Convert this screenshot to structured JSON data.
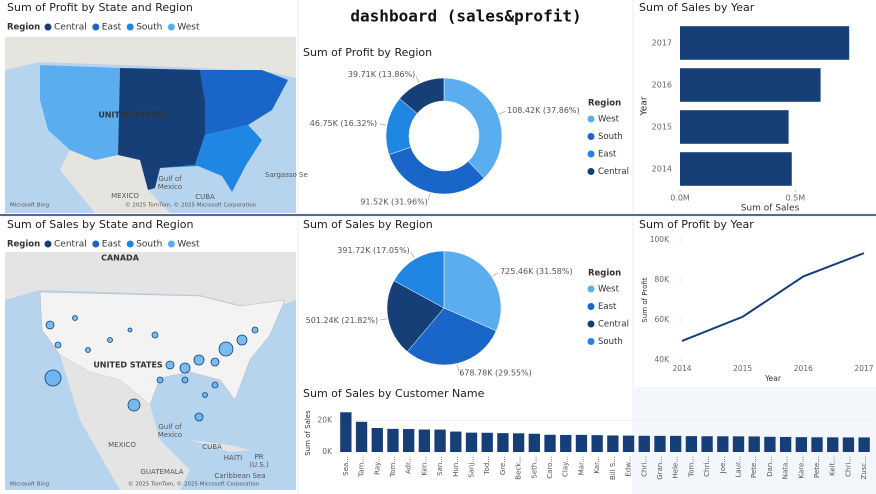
{
  "dashboard_title": "dashboard (sales&profit)",
  "maps": [
    {
      "title": "Sum of Profit by State and Region",
      "legend_title": "Region",
      "legend": [
        {
          "name": "Central",
          "color": "#163f78"
        },
        {
          "name": "East",
          "color": "#1a66c8"
        },
        {
          "name": "South",
          "color": "#1f86e3"
        },
        {
          "name": "West",
          "color": "#5aaef0"
        }
      ],
      "labels": [
        "UNITED STATES",
        "MEXICO",
        "Gulf of",
        "Mexico",
        "CUBA",
        "Sargasso Se",
        "© 2025 TomTom, © 2025 Microsoft Corporation",
        "Microsoft Bing"
      ]
    },
    {
      "title": "Sum of Sales by State and Region",
      "legend_title": "Region",
      "legend": [
        {
          "name": "Central",
          "color": "#163f78"
        },
        {
          "name": "East",
          "color": "#1a66c8"
        },
        {
          "name": "South",
          "color": "#1f86e3"
        },
        {
          "name": "West",
          "color": "#5aaef0"
        }
      ],
      "labels": [
        "CANADA",
        "UNITED STATES",
        "MEXICO",
        "Gulf of",
        "Mexico",
        "CUBA",
        "HAITI",
        "PR",
        "(U.S.)",
        "Caribbean Sea",
        "GUATEMALA",
        "© 2025 TomTom, © 2025 Microsoft Corporation",
        "Microsoft Bing"
      ]
    }
  ],
  "chart_data": [
    {
      "type": "donut",
      "title": "Sum of Profit by Region",
      "legend_title": "Region",
      "categories": [
        "West",
        "South",
        "East",
        "Central"
      ],
      "values": [
        108420,
        91520,
        46750,
        39710
      ],
      "value_labels": [
        "108.42K (37.86%)",
        "91.52K (31.96%)",
        "46.75K (16.32%)",
        "39.71K (13.86%)"
      ],
      "colors": [
        "#5aaef0",
        "#1a66c8",
        "#1f86e3",
        "#163f78"
      ]
    },
    {
      "type": "barh",
      "title": "Sum of Sales by Year",
      "categories": [
        "2017",
        "2016",
        "2015",
        "2014"
      ],
      "values": [
        733215,
        609206,
        470533,
        484247
      ],
      "color": "#163f78",
      "xlim": [
        0,
        780000
      ],
      "xticks": [
        {
          "value": 0,
          "label": "0.0M"
        },
        {
          "value": 500000,
          "label": "0.5M"
        }
      ],
      "xlabel": "Sum of Sales",
      "ylabel": "Year"
    },
    {
      "type": "pie",
      "title": "Sum of Sales by Region",
      "legend_title": "Region",
      "categories": [
        "West",
        "East",
        "Central",
        "South"
      ],
      "values": [
        725460,
        678780,
        501240,
        391720
      ],
      "value_labels": [
        "725.46K (31.58%)",
        "678.78K (29.55%)",
        "501.24K (21.82%)",
        "391.72K (17.05%)"
      ],
      "colors": [
        "#5aaef0",
        "#1a66c8",
        "#163f78",
        "#1f86e3"
      ]
    },
    {
      "type": "bar",
      "title": "Sum of Sales by Customer Name",
      "categories": [
        "Sea...",
        "Tam...",
        "Ray...",
        "Tom...",
        "Adr...",
        "Ken...",
        "San...",
        "Hun...",
        "Sanj...",
        "Tod...",
        "Gre...",
        "Beck...",
        "Seth...",
        "Caro...",
        "Clay...",
        "Mar...",
        "Kar...",
        "Bill S...",
        "Edw...",
        "Chri...",
        "Gran...",
        "Hele...",
        "Tom...",
        "Chri...",
        "Joe...",
        "Laur...",
        "Pete...",
        "Dan...",
        "Nata...",
        "Kare...",
        "Pete...",
        "Keit...",
        "Chri...",
        "Zusc..."
      ],
      "values": [
        25040,
        19050,
        15120,
        14600,
        14470,
        14180,
        14140,
        12870,
        12210,
        12130,
        11890,
        11790,
        11510,
        10850,
        10760,
        10800,
        10630,
        10410,
        10320,
        10200,
        10150,
        10170,
        10010,
        9930,
        9900,
        9870,
        9800,
        9580,
        9480,
        9350,
        9280,
        9230,
        9180,
        9200
      ],
      "color": "#163f78",
      "ylim": [
        0,
        29000
      ],
      "yticks": [
        {
          "value": 0,
          "label": "0K"
        },
        {
          "value": 20000,
          "label": "20K"
        }
      ],
      "ylabel": "Sum of Sales"
    },
    {
      "type": "line",
      "title": "Sum of Profit by Year",
      "x": [
        2014,
        2015,
        2016,
        2017
      ],
      "values": [
        49544,
        61619,
        81795,
        93439
      ],
      "color": "#163f78",
      "xlim": [
        2014,
        2017
      ],
      "xticks": [
        2014,
        2015,
        2016,
        2017
      ],
      "ylim": [
        40000,
        100000
      ],
      "yticks": [
        {
          "value": 40000,
          "label": "40K"
        },
        {
          "value": 60000,
          "label": "60K"
        },
        {
          "value": 80000,
          "label": "80K"
        },
        {
          "value": 100000,
          "label": "100K"
        }
      ],
      "xlabel": "Year",
      "ylabel": "Sum of Profit"
    }
  ]
}
